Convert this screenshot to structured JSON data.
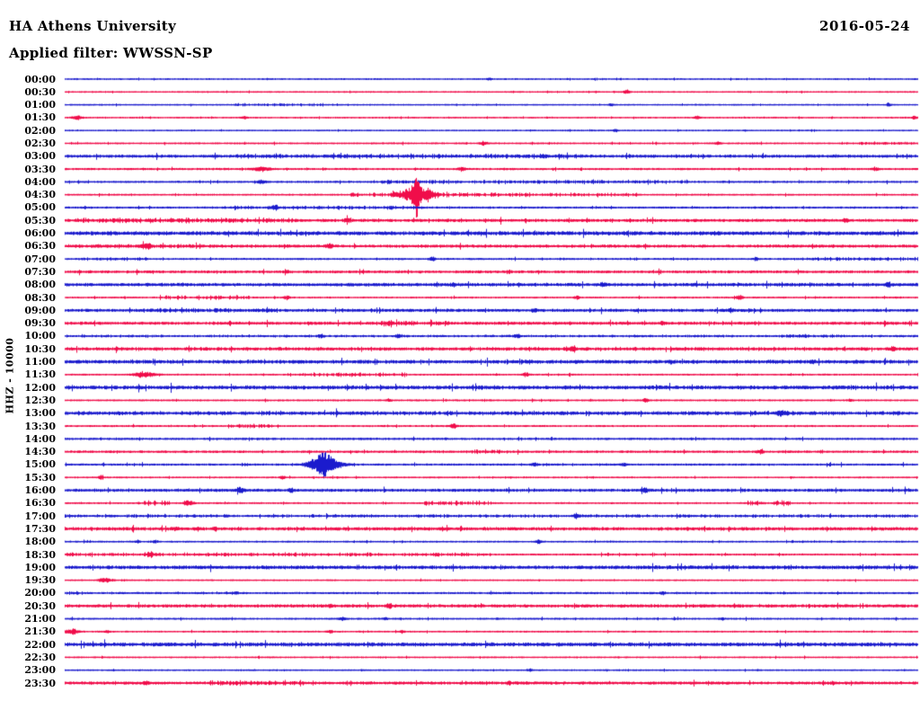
{
  "header": {
    "station_title": "HA Athens University",
    "filter_line": "Applied filter: WWSSN-SP",
    "date": "2016-05-24"
  },
  "colors": {
    "blue": "#1b1bcd",
    "red": "#f00d4a",
    "text": "#000000",
    "background": "#ffffff"
  },
  "chart_data": {
    "type": "line",
    "subtype": "helicorder-day-plot",
    "title": "HA Athens University",
    "filter": "Applied filter: WWSSN-SP",
    "date": "2016-05-24",
    "ylabel": "HHZ - 10000",
    "minutes_per_row": 30,
    "row_color_rule": "hour rows blue, half-hour rows red",
    "notable_events": [
      {
        "row": "04:30",
        "x_fraction": 0.414,
        "color": "red",
        "description": "large seismic event spike"
      },
      {
        "row": "15:00",
        "x_fraction": 0.303,
        "color": "blue",
        "description": "moderate spindle-shaped event"
      },
      {
        "row": "19:30",
        "x_fraction": 0.047,
        "color": "red",
        "description": "small local event"
      },
      {
        "row": "21:30",
        "x_fraction": 0.01,
        "color": "red",
        "description": "small local event at row start"
      }
    ],
    "rows": [
      {
        "label": "00:00",
        "color": "blue",
        "t": 0.6,
        "dense": [],
        "events": [
          [
            0.497,
            1.5,
            4
          ]
        ]
      },
      {
        "label": "00:30",
        "color": "red",
        "t": 0.55,
        "dense": [],
        "events": [
          [
            0.658,
            2.5,
            5
          ]
        ]
      },
      {
        "label": "01:00",
        "color": "blue",
        "t": 0.55,
        "dense": [
          [
            0.2,
            0.3,
            1.2
          ]
        ],
        "events": [
          [
            0.64,
            1.5,
            4
          ],
          [
            0.965,
            2,
            4
          ]
        ]
      },
      {
        "label": "01:30",
        "color": "red",
        "t": 0.6,
        "dense": [],
        "events": [
          [
            0.014,
            2,
            8
          ],
          [
            0.21,
            1.5,
            5
          ],
          [
            0.74,
            1.8,
            5
          ],
          [
            0.995,
            2,
            4
          ]
        ]
      },
      {
        "label": "02:00",
        "color": "blue",
        "t": 0.55,
        "dense": [],
        "events": [
          [
            0.645,
            2,
            4
          ]
        ]
      },
      {
        "label": "02:30",
        "color": "red",
        "t": 0.7,
        "dense": [
          [
            0.93,
            1.0,
            1.3
          ]
        ],
        "events": [
          [
            0.49,
            2,
            6
          ],
          [
            0.765,
            1.5,
            5
          ]
        ]
      },
      {
        "label": "03:00",
        "color": "blue",
        "t": 1.5,
        "dense": [
          [
            0.2,
            0.62,
            1.2
          ]
        ],
        "events": [
          [
            0.56,
            2.2,
            6
          ]
        ]
      },
      {
        "label": "03:30",
        "color": "red",
        "t": 0.9,
        "dense": [],
        "events": [
          [
            0.23,
            2.5,
            14
          ],
          [
            0.465,
            2,
            6
          ],
          [
            0.95,
            2,
            5
          ]
        ]
      },
      {
        "label": "04:00",
        "color": "blue",
        "t": 0.9,
        "dense": [
          [
            0.36,
            0.73,
            1.5
          ]
        ],
        "events": [
          [
            0.23,
            2,
            8
          ]
        ]
      },
      {
        "label": "04:30",
        "color": "red",
        "t": 0.7,
        "dense": [
          [
            0.33,
            0.67,
            1.8
          ],
          [
            0.4,
            0.45,
            2.5
          ]
        ],
        "events": [
          [
            0.4137,
            9,
            26
          ],
          [
            0.4115,
            25,
            5
          ],
          [
            0.385,
            2.5,
            4
          ]
        ]
      },
      {
        "label": "05:00",
        "color": "blue",
        "t": 0.9,
        "dense": [
          [
            0.2,
            0.42,
            1.5
          ]
        ],
        "events": [
          [
            0.245,
            2.5,
            6
          ]
        ]
      },
      {
        "label": "05:30",
        "color": "red",
        "t": 1.5,
        "dense": [
          [
            0.0,
            0.27,
            1.8
          ]
        ],
        "events": [
          [
            0.33,
            2,
            5
          ],
          [
            0.915,
            2,
            5
          ]
        ]
      },
      {
        "label": "06:00",
        "color": "blue",
        "t": 2.1,
        "dense": [],
        "events": [
          [
            0.55,
            1,
            4
          ]
        ]
      },
      {
        "label": "06:30",
        "color": "red",
        "t": 1.5,
        "dense": [
          [
            0.0,
            0.15,
            1.2
          ]
        ],
        "events": [
          [
            0.096,
            3,
            6
          ],
          [
            0.31,
            2.5,
            5
          ]
        ]
      },
      {
        "label": "07:00",
        "color": "blue",
        "t": 0.8,
        "dense": [
          [
            0.02,
            0.1,
            1.2
          ],
          [
            0.86,
            1.0,
            1.6
          ]
        ],
        "events": [
          [
            0.43,
            2.5,
            5
          ],
          [
            0.81,
            2,
            4
          ]
        ]
      },
      {
        "label": "07:30",
        "color": "red",
        "t": 1.3,
        "dense": [],
        "events": [
          [
            0.26,
            1.5,
            4
          ],
          [
            0.52,
            1.5,
            4
          ]
        ]
      },
      {
        "label": "08:00",
        "color": "blue",
        "t": 1.7,
        "dense": [],
        "events": [
          [
            0.455,
            1.5,
            4
          ],
          [
            0.63,
            1.5,
            4
          ],
          [
            0.965,
            2,
            5
          ]
        ]
      },
      {
        "label": "08:30",
        "color": "red",
        "t": 0.7,
        "dense": [
          [
            0.11,
            0.23,
            1.9
          ]
        ],
        "events": [
          [
            0.26,
            2,
            5
          ],
          [
            0.6,
            2,
            5
          ],
          [
            0.79,
            2.5,
            6
          ]
        ]
      },
      {
        "label": "09:00",
        "color": "blue",
        "t": 1.5,
        "dense": [
          [
            0.09,
            0.25,
            1.5
          ]
        ],
        "events": [
          [
            0.55,
            2,
            5
          ],
          [
            0.78,
            2,
            5
          ]
        ]
      },
      {
        "label": "09:30",
        "color": "red",
        "t": 1.5,
        "dense": [
          [
            0.37,
            0.45,
            1.8
          ]
        ],
        "events": [
          [
            0.38,
            2.5,
            6
          ],
          [
            0.7,
            2,
            5
          ]
        ]
      },
      {
        "label": "10:00",
        "color": "blue",
        "t": 0.7,
        "dense": [
          [
            0.0,
            1.0,
            0.7
          ],
          [
            0.84,
            0.91,
            1.2
          ]
        ],
        "events": [
          [
            0.3,
            2,
            5
          ],
          [
            0.39,
            2.5,
            5
          ],
          [
            0.53,
            2.5,
            5
          ]
        ]
      },
      {
        "label": "10:30",
        "color": "red",
        "t": 1.4,
        "dense": [
          [
            0.0,
            1.0,
            0.8
          ]
        ],
        "events": [
          [
            0.595,
            3,
            6
          ],
          [
            0.97,
            2.5,
            5
          ]
        ]
      },
      {
        "label": "11:00",
        "color": "blue",
        "t": 1.9,
        "dense": [],
        "events": [
          [
            0.71,
            1.5,
            4
          ],
          [
            0.875,
            1.5,
            4
          ]
        ]
      },
      {
        "label": "11:30",
        "color": "red",
        "t": 0.7,
        "dense": [
          [
            0.26,
            0.4,
            2.0
          ]
        ],
        "events": [
          [
            0.093,
            3.5,
            16
          ],
          [
            0.54,
            2,
            5
          ]
        ]
      },
      {
        "label": "12:00",
        "color": "blue",
        "t": 2.0,
        "dense": [],
        "events": []
      },
      {
        "label": "12:30",
        "color": "red",
        "t": 0.75,
        "dense": [],
        "events": [
          [
            0.38,
            1.5,
            4
          ],
          [
            0.68,
            2,
            5
          ],
          [
            0.92,
            1.5,
            4
          ]
        ]
      },
      {
        "label": "13:00",
        "color": "blue",
        "t": 1.5,
        "dense": [
          [
            0.0,
            1.0,
            1.0
          ]
        ],
        "events": [
          [
            0.84,
            3,
            10
          ]
        ]
      },
      {
        "label": "13:30",
        "color": "red",
        "t": 0.75,
        "dense": [
          [
            0.19,
            0.25,
            2.0
          ]
        ],
        "events": [
          [
            0.455,
            2.5,
            6
          ]
        ]
      },
      {
        "label": "14:00",
        "color": "blue",
        "t": 1.0,
        "dense": [],
        "events": []
      },
      {
        "label": "14:30",
        "color": "red",
        "t": 1.1,
        "dense": [
          [
            0.47,
            0.52,
            2.0
          ]
        ],
        "events": [
          [
            0.815,
            2.5,
            6
          ]
        ]
      },
      {
        "label": "15:00",
        "color": "blue",
        "t": 0.9,
        "dense": [],
        "events": [
          [
            0.304,
            11,
            26
          ],
          [
            0.302,
            6,
            8
          ],
          [
            0.55,
            2,
            5
          ],
          [
            0.655,
            2,
            5
          ]
        ]
      },
      {
        "label": "15:30",
        "color": "red",
        "t": 0.65,
        "dense": [],
        "events": [
          [
            0.042,
            2,
            4
          ],
          [
            0.255,
            2,
            4
          ]
        ]
      },
      {
        "label": "16:00",
        "color": "blue",
        "t": 1.5,
        "dense": [],
        "events": [
          [
            0.205,
            2.5,
            6
          ],
          [
            0.265,
            2,
            5
          ],
          [
            0.68,
            2.5,
            6
          ]
        ]
      },
      {
        "label": "16:30",
        "color": "red",
        "t": 0.7,
        "dense": [
          [
            0.085,
            0.125,
            2.5
          ],
          [
            0.42,
            0.5,
            2.0
          ],
          [
            0.8,
            0.85,
            2.5
          ]
        ],
        "events": [
          [
            0.145,
            3,
            8
          ]
        ]
      },
      {
        "label": "17:00",
        "color": "blue",
        "t": 0.8,
        "dense": [
          [
            0.0,
            1.0,
            1.2
          ]
        ],
        "events": [
          [
            0.6,
            2.5,
            6
          ]
        ]
      },
      {
        "label": "17:30",
        "color": "red",
        "t": 1.7,
        "dense": [],
        "events": [
          [
            0.13,
            1.5,
            4
          ],
          [
            0.155,
            1.5,
            4
          ],
          [
            0.175,
            1.5,
            4
          ]
        ]
      },
      {
        "label": "18:00",
        "color": "blue",
        "t": 0.7,
        "dense": [],
        "events": [
          [
            0.085,
            1.5,
            4
          ],
          [
            0.105,
            1.5,
            4
          ],
          [
            0.555,
            2,
            5
          ]
        ]
      },
      {
        "label": "18:30",
        "color": "red",
        "t": 0.8,
        "dense": [
          [
            0.0,
            0.5,
            1.5
          ]
        ],
        "events": [
          [
            0.1,
            2.5,
            6
          ]
        ]
      },
      {
        "label": "19:00",
        "color": "blue",
        "t": 1.9,
        "dense": [],
        "events": [
          [
            0.93,
            1,
            3
          ]
        ]
      },
      {
        "label": "19:30",
        "color": "red",
        "t": 0.6,
        "dense": [],
        "events": [
          [
            0.047,
            3,
            10
          ]
        ]
      },
      {
        "label": "20:00",
        "color": "blue",
        "t": 0.9,
        "dense": [
          [
            0.0,
            0.02,
            1.5
          ]
        ],
        "events": [
          [
            0.2,
            1.5,
            4
          ],
          [
            0.7,
            1.8,
            4
          ]
        ]
      },
      {
        "label": "20:30",
        "color": "red",
        "t": 1.6,
        "dense": [],
        "events": [
          [
            0.31,
            1.5,
            4
          ],
          [
            0.38,
            2.5,
            5
          ]
        ]
      },
      {
        "label": "21:00",
        "color": "blue",
        "t": 0.8,
        "dense": [],
        "events": [
          [
            0.325,
            2.2,
            6
          ],
          [
            0.375,
            1.5,
            4
          ],
          [
            0.77,
            1.5,
            4
          ]
        ]
      },
      {
        "label": "21:30",
        "color": "red",
        "t": 0.65,
        "dense": [],
        "events": [
          [
            0.008,
            3,
            12
          ],
          [
            0.05,
            1.5,
            4
          ],
          [
            0.31,
            1.8,
            4
          ],
          [
            0.395,
            1.5,
            4
          ]
        ]
      },
      {
        "label": "22:00",
        "color": "blue",
        "t": 2.0,
        "dense": [],
        "events": []
      },
      {
        "label": "22:30",
        "color": "red",
        "t": 0.6,
        "dense": [],
        "events": []
      },
      {
        "label": "23:00",
        "color": "blue",
        "t": 0.6,
        "dense": [],
        "events": [
          [
            0.545,
            1.5,
            4
          ]
        ]
      },
      {
        "label": "23:30",
        "color": "red",
        "t": 1.5,
        "dense": [
          [
            0.17,
            0.28,
            2.0
          ]
        ],
        "events": [
          [
            0.095,
            2,
            5
          ],
          [
            0.52,
            1.8,
            4
          ],
          [
            0.9,
            1.8,
            4
          ]
        ]
      }
    ]
  }
}
